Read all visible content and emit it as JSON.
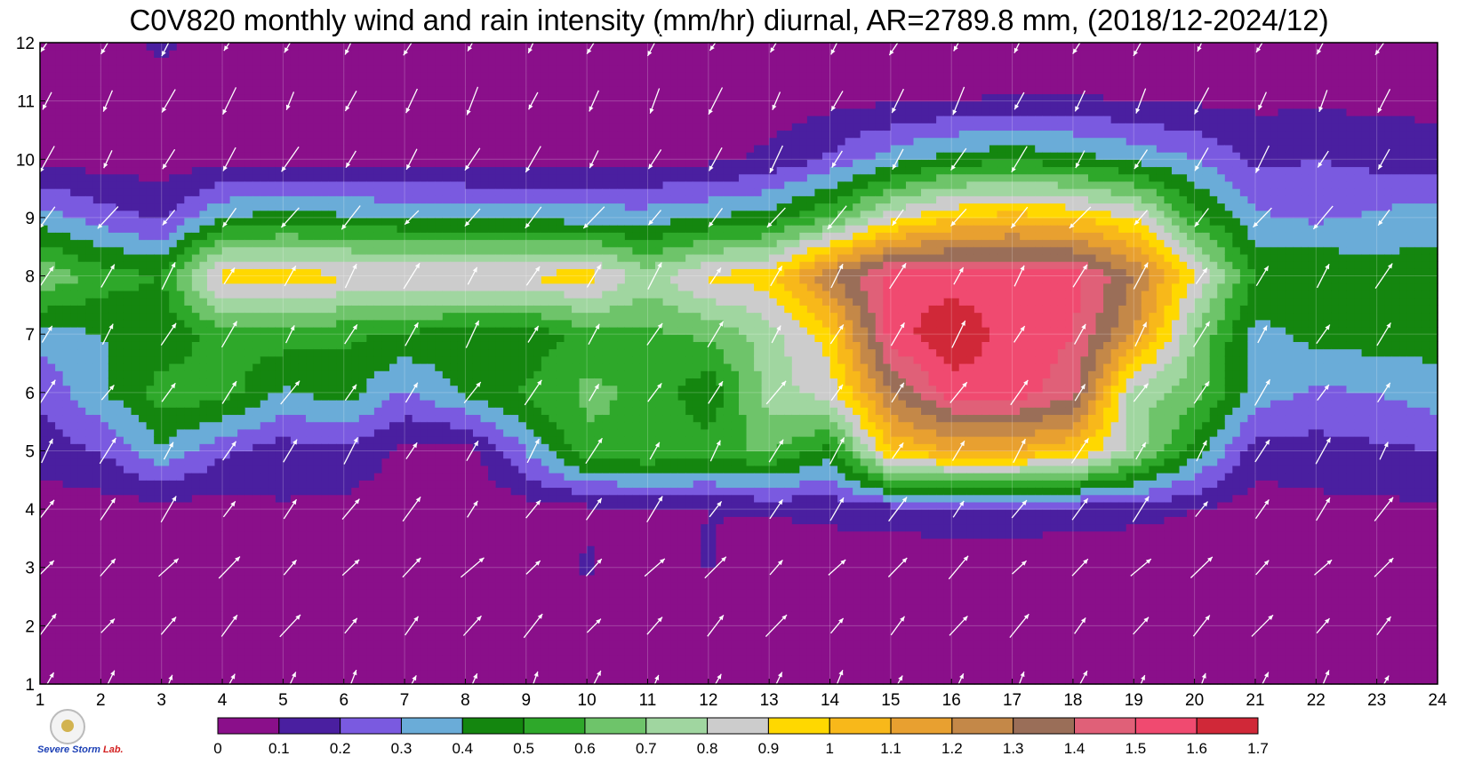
{
  "title": "C0V820 monthly wind and rain intensity (mm/hr) diurnal, AR=2789.8 mm, (2018/12-2024/12)",
  "logo": {
    "text": "Severe Storm",
    "suffix": "Lab."
  },
  "chart_data": {
    "type": "heatmap",
    "title": "C0V820 monthly wind and rain intensity (mm/hr) diurnal, AR=2789.8 mm, (2018/12-2024/12)",
    "xlabel": "",
    "ylabel": "",
    "xlim": [
      1,
      24
    ],
    "ylim": [
      1,
      12
    ],
    "x_ticks": [
      "1",
      "2",
      "3",
      "4",
      "5",
      "6",
      "7",
      "8",
      "9",
      "10",
      "11",
      "12",
      "13",
      "14",
      "15",
      "16",
      "17",
      "18",
      "19",
      "20",
      "21",
      "22",
      "23",
      "24"
    ],
    "y_ticks": [
      "1",
      "2",
      "3",
      "4",
      "5",
      "6",
      "7",
      "8",
      "9",
      "10",
      "11",
      "12"
    ],
    "grid": true,
    "colorbar": {
      "levels": [
        "0",
        "0.1",
        "0.2",
        "0.3",
        "0.4",
        "0.5",
        "0.6",
        "0.7",
        "0.8",
        "0.9",
        "1",
        "1.1",
        "1.2",
        "1.3",
        "1.4",
        "1.5",
        "1.6",
        "1.7"
      ],
      "colors": [
        "#8a0f8a",
        "#4a1fa0",
        "#7a5ae0",
        "#6aacd8",
        "#14860f",
        "#2ea82a",
        "#6ec46a",
        "#a0d6a0",
        "#cccccc",
        "#ffd800",
        "#f8b81a",
        "#e8a030",
        "#c48848",
        "#9a6e58",
        "#e06078",
        "#f04a70",
        "#d02838"
      ]
    },
    "rain_intensity_grid": {
      "note": "rows = month 1..12, columns = hour 1..24, mm/hr",
      "values": [
        [
          0.02,
          0.02,
          0.02,
          0.02,
          0.02,
          0.02,
          0.02,
          0.02,
          0.02,
          0.02,
          0.02,
          0.02,
          0.02,
          0.02,
          0.02,
          0.02,
          0.02,
          0.02,
          0.02,
          0.02,
          0.02,
          0.02,
          0.02,
          0.02
        ],
        [
          0.02,
          0.02,
          0.02,
          0.02,
          0.02,
          0.02,
          0.02,
          0.02,
          0.02,
          0.02,
          0.02,
          0.02,
          0.02,
          0.02,
          0.02,
          0.02,
          0.02,
          0.02,
          0.02,
          0.02,
          0.02,
          0.02,
          0.02,
          0.02
        ],
        [
          0.02,
          0.02,
          0.02,
          0.02,
          0.02,
          0.02,
          0.02,
          0.02,
          0.02,
          0.12,
          0.02,
          0.11,
          0.02,
          0.03,
          0.03,
          0.03,
          0.03,
          0.03,
          0.03,
          0.03,
          0.03,
          0.03,
          0.03,
          0.03
        ],
        [
          0.04,
          0.05,
          0.05,
          0.06,
          0.09,
          0.07,
          0.04,
          0.02,
          0.05,
          0.07,
          0.08,
          0.1,
          0.11,
          0.13,
          0.15,
          0.16,
          0.16,
          0.15,
          0.13,
          0.1,
          0.05,
          0.07,
          0.08,
          0.08
        ],
        [
          0.15,
          0.2,
          0.38,
          0.22,
          0.15,
          0.18,
          0.08,
          0.05,
          0.3,
          0.58,
          0.6,
          0.55,
          0.62,
          0.45,
          1.0,
          1.1,
          1.1,
          1.0,
          0.75,
          0.45,
          0.15,
          0.16,
          0.18,
          0.2
        ],
        [
          0.22,
          0.38,
          0.55,
          0.55,
          0.38,
          0.45,
          0.28,
          0.42,
          0.52,
          0.62,
          0.58,
          0.42,
          0.75,
          0.85,
          1.3,
          1.55,
          1.55,
          1.45,
          0.75,
          0.65,
          0.35,
          0.28,
          0.3,
          0.35
        ],
        [
          0.35,
          0.4,
          0.42,
          0.55,
          0.55,
          0.52,
          0.48,
          0.45,
          0.42,
          0.55,
          0.58,
          0.62,
          0.75,
          0.95,
          1.55,
          1.68,
          1.55,
          1.5,
          1.2,
          0.7,
          0.35,
          0.44,
          0.45,
          0.45
        ],
        [
          0.7,
          0.55,
          0.5,
          0.95,
          0.95,
          0.92,
          0.92,
          0.9,
          0.92,
          0.95,
          0.75,
          0.92,
          0.95,
          1.3,
          1.55,
          1.55,
          1.55,
          1.55,
          1.3,
          0.9,
          0.5,
          0.5,
          0.45,
          0.45
        ],
        [
          0.35,
          0.25,
          0.18,
          0.4,
          0.45,
          0.42,
          0.4,
          0.38,
          0.37,
          0.36,
          0.35,
          0.4,
          0.45,
          0.6,
          0.85,
          1.0,
          1.05,
          1.0,
          0.9,
          0.55,
          0.32,
          0.28,
          0.32,
          0.36
        ],
        [
          0.08,
          0.05,
          0.05,
          0.06,
          0.07,
          0.06,
          0.06,
          0.06,
          0.06,
          0.06,
          0.07,
          0.08,
          0.12,
          0.22,
          0.35,
          0.45,
          0.48,
          0.45,
          0.38,
          0.3,
          0.18,
          0.2,
          0.17,
          0.15
        ],
        [
          0.03,
          0.02,
          0.03,
          0.02,
          0.02,
          0.02,
          0.02,
          0.02,
          0.02,
          0.02,
          0.02,
          0.03,
          0.05,
          0.07,
          0.09,
          0.1,
          0.11,
          0.11,
          0.1,
          0.09,
          0.08,
          0.08,
          0.08,
          0.07
        ],
        [
          0.02,
          0.02,
          0.13,
          0.02,
          0.02,
          0.02,
          0.02,
          0.02,
          0.02,
          0.02,
          0.02,
          0.02,
          0.02,
          0.02,
          0.02,
          0.02,
          0.02,
          0.02,
          0.02,
          0.02,
          0.02,
          0.02,
          0.02,
          0.02
        ]
      ]
    },
    "wind_vectors": {
      "note": "arrow direction in degrees (0 = toward north/up, 90 = toward east/right), rows = month 1..12, columns = hour 1..24",
      "direction_by_month": [
        25,
        40,
        45,
        35,
        30,
        35,
        30,
        30,
        220,
        210,
        205,
        210
      ]
    }
  }
}
